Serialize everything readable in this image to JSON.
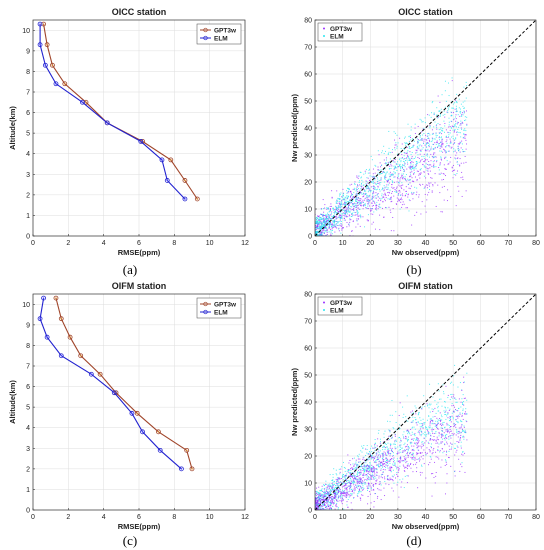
{
  "panel_labels": [
    "(a)",
    "(b)",
    "(c)",
    "(d)"
  ],
  "colors": {
    "gpt3w": "#a0452a",
    "elm": "#2222d0",
    "scatter_gpt3w": "#9b30ff",
    "scatter_elm": "#2ee6f0",
    "marker_gpt3w": "#d9862a",
    "marker_elm": "#4444ff",
    "diagonal": "#000000"
  },
  "chart_data": [
    {
      "type": "line",
      "title": "OICC station",
      "xlabel": "RMSE(ppm)",
      "ylabel": "Altitude(km)",
      "xlim": [
        0,
        12
      ],
      "ylim": [
        0,
        10.5
      ],
      "xticks": [
        0,
        2,
        4,
        6,
        8,
        10,
        12
      ],
      "yticks": [
        0,
        1,
        2,
        3,
        4,
        5,
        6,
        7,
        8,
        9,
        10
      ],
      "grid": true,
      "legend_position": "top-right",
      "series": [
        {
          "name": "GPT3w",
          "points": [
            [
              0.6,
              10.3
            ],
            [
              0.8,
              9.3
            ],
            [
              1.1,
              8.3
            ],
            [
              1.8,
              7.4
            ],
            [
              3.0,
              6.5
            ],
            [
              4.2,
              5.5
            ],
            [
              6.2,
              4.6
            ],
            [
              7.8,
              3.7
            ],
            [
              8.6,
              2.7
            ],
            [
              9.3,
              1.8
            ]
          ]
        },
        {
          "name": "ELM",
          "points": [
            [
              0.4,
              10.3
            ],
            [
              0.4,
              9.3
            ],
            [
              0.7,
              8.3
            ],
            [
              1.3,
              7.4
            ],
            [
              2.8,
              6.5
            ],
            [
              4.2,
              5.5
            ],
            [
              6.1,
              4.6
            ],
            [
              7.3,
              3.7
            ],
            [
              7.6,
              2.7
            ],
            [
              8.6,
              1.8
            ]
          ]
        }
      ]
    },
    {
      "type": "scatter",
      "title": "OICC station",
      "xlabel": "Nw observed(ppm)",
      "ylabel": "Nw predicted(ppm)",
      "xlim": [
        0,
        80
      ],
      "ylim": [
        0,
        80
      ],
      "xticks": [
        0,
        10,
        20,
        30,
        40,
        50,
        60,
        70,
        80
      ],
      "yticks": [
        0,
        10,
        20,
        30,
        40,
        50,
        60,
        70,
        80
      ],
      "grid": true,
      "legend_position": "top-left",
      "diagonal": "y = x (dashed)",
      "series": [
        {
          "name": "GPT3w",
          "cloud": {
            "x_range": [
              0,
              55
            ],
            "y_center_slope": 0.62,
            "y_max": 38,
            "spread": 7,
            "count": 1100
          }
        },
        {
          "name": "ELM",
          "cloud": {
            "x_range": [
              0,
              55
            ],
            "y_center_slope": 0.78,
            "y_max": 40,
            "spread": 6,
            "count": 1100
          }
        }
      ]
    },
    {
      "type": "line",
      "title": "OIFM station",
      "xlabel": "RMSE(ppm)",
      "ylabel": "Altitude(km)",
      "xlim": [
        0,
        12
      ],
      "ylim": [
        0,
        10.5
      ],
      "xticks": [
        0,
        2,
        4,
        6,
        8,
        10,
        12
      ],
      "yticks": [
        0,
        1,
        2,
        3,
        4,
        5,
        6,
        7,
        8,
        9,
        10
      ],
      "grid": true,
      "legend_position": "top-right",
      "series": [
        {
          "name": "GPT3w",
          "points": [
            [
              1.3,
              10.3
            ],
            [
              1.6,
              9.3
            ],
            [
              2.1,
              8.4
            ],
            [
              2.7,
              7.5
            ],
            [
              3.8,
              6.6
            ],
            [
              4.7,
              5.7
            ],
            [
              5.9,
              4.7
            ],
            [
              7.1,
              3.8
            ],
            [
              8.7,
              2.9
            ],
            [
              9.0,
              2.0
            ]
          ]
        },
        {
          "name": "ELM",
          "points": [
            [
              0.6,
              10.3
            ],
            [
              0.4,
              9.3
            ],
            [
              0.8,
              8.4
            ],
            [
              1.6,
              7.5
            ],
            [
              3.3,
              6.6
            ],
            [
              4.6,
              5.7
            ],
            [
              5.6,
              4.7
            ],
            [
              6.2,
              3.8
            ],
            [
              7.2,
              2.9
            ],
            [
              8.4,
              2.0
            ]
          ]
        }
      ]
    },
    {
      "type": "scatter",
      "title": "OIFM station",
      "xlabel": "Nw observed(ppm)",
      "ylabel": "Nw predicted(ppm)",
      "xlim": [
        0,
        80
      ],
      "ylim": [
        0,
        80
      ],
      "xticks": [
        0,
        10,
        20,
        30,
        40,
        50,
        60,
        70,
        80
      ],
      "yticks": [
        0,
        10,
        20,
        30,
        40,
        50,
        60,
        70,
        80
      ],
      "grid": true,
      "legend_position": "top-left",
      "diagonal": "y = x (dashed)",
      "series": [
        {
          "name": "GPT3w",
          "cloud": {
            "x_range": [
              0,
              55
            ],
            "y_center_slope": 0.55,
            "y_max": 33,
            "spread": 6,
            "count": 1100
          }
        },
        {
          "name": "ELM",
          "cloud": {
            "x_range": [
              0,
              55
            ],
            "y_center_slope": 0.72,
            "y_max": 34,
            "spread": 6,
            "count": 1100
          }
        }
      ]
    }
  ]
}
